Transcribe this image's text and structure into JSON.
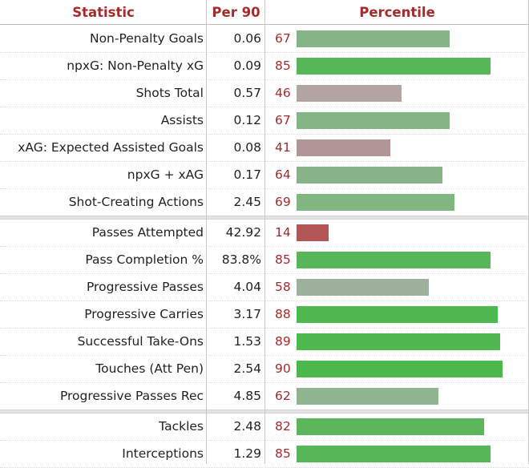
{
  "headers": {
    "statistic": "Statistic",
    "per90": "Per 90",
    "percentile": "Percentile"
  },
  "colors": {
    "header_text": "#a52a2a",
    "percentile_text": "#a52a2a"
  },
  "chart_data": {
    "type": "bar",
    "orientation": "horizontal",
    "xlim": [
      0,
      100
    ],
    "groups": [
      [
        {
          "stat": "Non-Penalty Goals",
          "per90": "0.06",
          "percentile": 67,
          "color": "#85b486"
        },
        {
          "stat": "npxG: Non-Penalty xG",
          "per90": "0.09",
          "percentile": 85,
          "color": "#57b657"
        },
        {
          "stat": "Shots Total",
          "per90": "0.57",
          "percentile": 46,
          "color": "#b3a4a4"
        },
        {
          "stat": "Assists",
          "per90": "0.12",
          "percentile": 67,
          "color": "#85b486"
        },
        {
          "stat": "xAG: Expected Assisted Goals",
          "per90": "0.08",
          "percentile": 41,
          "color": "#b09696"
        },
        {
          "stat": "npxG + xAG",
          "per90": "0.17",
          "percentile": 64,
          "color": "#88b288"
        },
        {
          "stat": "Shot-Creating Actions",
          "per90": "2.45",
          "percentile": 69,
          "color": "#80b680"
        }
      ],
      [
        {
          "stat": "Passes Attempted",
          "per90": "42.92",
          "percentile": 14,
          "color": "#b45656"
        },
        {
          "stat": "Pass Completion %",
          "per90": "83.8%",
          "percentile": 85,
          "color": "#57b657"
        },
        {
          "stat": "Progressive Passes",
          "per90": "4.04",
          "percentile": 58,
          "color": "#9db09c"
        },
        {
          "stat": "Progressive Carries",
          "per90": "3.17",
          "percentile": 88,
          "color": "#50b850"
        },
        {
          "stat": "Successful Take-Ons",
          "per90": "1.53",
          "percentile": 89,
          "color": "#4fb84f"
        },
        {
          "stat": "Touches (Att Pen)",
          "per90": "2.54",
          "percentile": 90,
          "color": "#4cb84c"
        },
        {
          "stat": "Progressive Passes Rec",
          "per90": "4.85",
          "percentile": 62,
          "color": "#90b48f"
        }
      ],
      [
        {
          "stat": "Tackles",
          "per90": "2.48",
          "percentile": 82,
          "color": "#5bb55b"
        },
        {
          "stat": "Interceptions",
          "per90": "1.29",
          "percentile": 85,
          "color": "#57b657"
        }
      ]
    ]
  }
}
